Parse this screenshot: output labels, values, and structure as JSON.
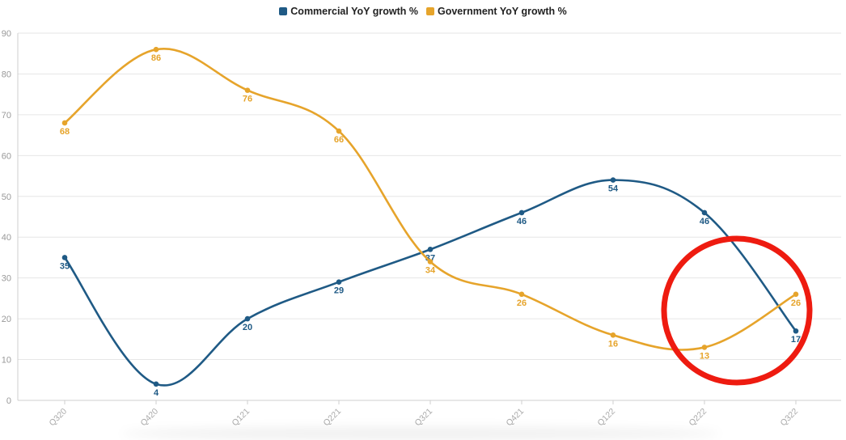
{
  "chart_data": {
    "type": "line",
    "title": "",
    "xlabel": "",
    "ylabel": "",
    "categories": [
      "Q320",
      "Q420",
      "Q121",
      "Q221",
      "Q321",
      "Q421",
      "Q122",
      "Q222",
      "Q322"
    ],
    "ylim": [
      0,
      90
    ],
    "yticks": [
      0,
      10,
      20,
      30,
      40,
      50,
      60,
      70,
      80,
      90
    ],
    "grid": true,
    "legend_position": "top-center",
    "series": [
      {
        "name": "Commercial YoY growth %",
        "color": "#1f5a85",
        "values": [
          35,
          4,
          20,
          29,
          37,
          46,
          54,
          46,
          17
        ],
        "label_position": [
          "below",
          "below",
          "below",
          "below",
          "below",
          "below",
          "below",
          "below",
          "below"
        ]
      },
      {
        "name": "Government YoY growth %",
        "color": "#e6a42b",
        "values": [
          68,
          86,
          76,
          66,
          34,
          26,
          16,
          13,
          26
        ],
        "label_position": [
          "below",
          "below",
          "below",
          "below",
          "below",
          "below",
          "below",
          "below",
          "below"
        ]
      }
    ],
    "annotations": [
      {
        "type": "circle",
        "color": "#ee1b10",
        "around": "Q222-Q322"
      }
    ]
  }
}
